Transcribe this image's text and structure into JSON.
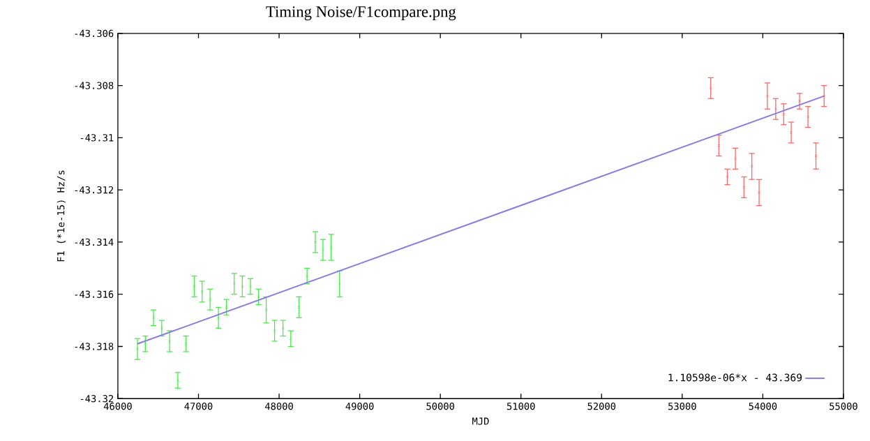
{
  "chart_data": {
    "type": "scatter",
    "title": "Timing Noise/F1compare.png",
    "xlabel": "MJD",
    "ylabel": "F1 (*1e-15) Hz/s",
    "xlim": [
      46000,
      55000
    ],
    "xticks": [
      46000,
      47000,
      48000,
      49000,
      50000,
      51000,
      52000,
      53000,
      54000,
      55000
    ],
    "ylim": [
      -43.32,
      -43.306
    ],
    "yticks": [
      -43.32,
      -43.318,
      -43.316,
      -43.314,
      -43.312,
      -43.31,
      -43.308,
      -43.306
    ],
    "legend": "bottom right",
    "series": [
      {
        "marker": "cross",
        "color": "#44ee44",
        "x": [
          46243,
          46341,
          46442,
          46544,
          46642,
          46744,
          46845,
          46947,
          47045,
          47144,
          47248,
          47347,
          47443,
          47544,
          47645,
          47744,
          47840,
          47944,
          48048,
          48145,
          48246,
          48347,
          48449,
          48544,
          48646,
          48750
        ],
        "values": [
          -43.3181,
          -43.3179,
          -43.3169,
          -43.3173,
          -43.3178,
          -43.3193,
          -43.3179,
          -43.3157,
          -43.3159,
          -43.3162,
          -43.3169,
          -43.3165,
          -43.3156,
          -43.3157,
          -43.3157,
          -43.3161,
          -43.3166,
          -43.3174,
          -43.3173,
          -43.3177,
          -43.3165,
          -43.3153,
          -43.314,
          -43.3143,
          -43.3142,
          -43.3156
        ],
        "errors": [
          0.0004,
          0.0003,
          0.0003,
          0.0003,
          0.0004,
          0.0003,
          0.0003,
          0.0004,
          0.0004,
          0.0004,
          0.0004,
          0.0003,
          0.0004,
          0.0004,
          0.0003,
          0.0003,
          0.0005,
          0.0004,
          0.0003,
          0.0003,
          0.0004,
          0.0003,
          0.0004,
          0.0004,
          0.0005,
          0.0005
        ]
      },
      {
        "marker": "cross",
        "color": "#ff6666",
        "x": [
          53354,
          53455,
          53560,
          53660,
          53766,
          53864,
          53954,
          54056,
          54160,
          54259,
          54352,
          54456,
          54560,
          54659,
          54760
        ],
        "values": [
          -43.3081,
          -43.3103,
          -43.3115,
          -43.3108,
          -43.3119,
          -43.3111,
          -43.3121,
          -43.3084,
          -43.3089,
          -43.3091,
          -43.3098,
          -43.3086,
          -43.3092,
          -43.3107,
          -43.3084
        ],
        "errors": [
          0.0004,
          0.0004,
          0.0003,
          0.0004,
          0.0004,
          0.0005,
          0.0005,
          0.0005,
          0.0004,
          0.0004,
          0.0004,
          0.0003,
          0.0004,
          0.0005,
          0.0004
        ]
      },
      {
        "type": "line",
        "name": "1.10598e-06*x - 43.369",
        "color": "#8877ee",
        "x": [
          46243,
          54760
        ],
        "values": [
          -43.3179,
          -43.3084
        ]
      }
    ]
  }
}
